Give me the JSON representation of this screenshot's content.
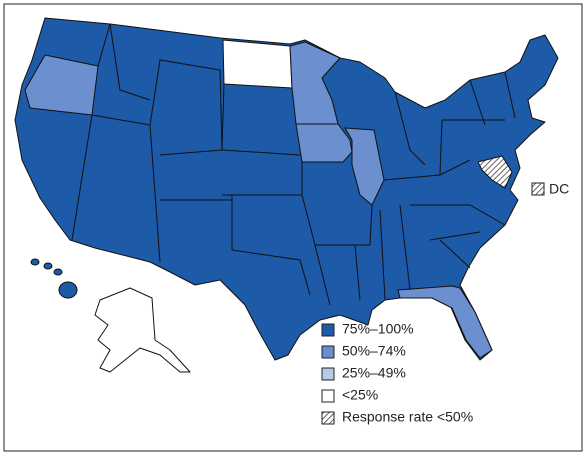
{
  "legend": {
    "items": [
      {
        "label": "75%–100%",
        "color": "#1d5aa8"
      },
      {
        "label": "50%–74%",
        "color": "#6b8fcf"
      },
      {
        "label": "25%–49%",
        "color": "#b9cbeb"
      },
      {
        "label": "<25%",
        "color": "#ffffff"
      },
      {
        "label": "Response rate <50%"
      }
    ]
  },
  "dc_label": "DC"
}
